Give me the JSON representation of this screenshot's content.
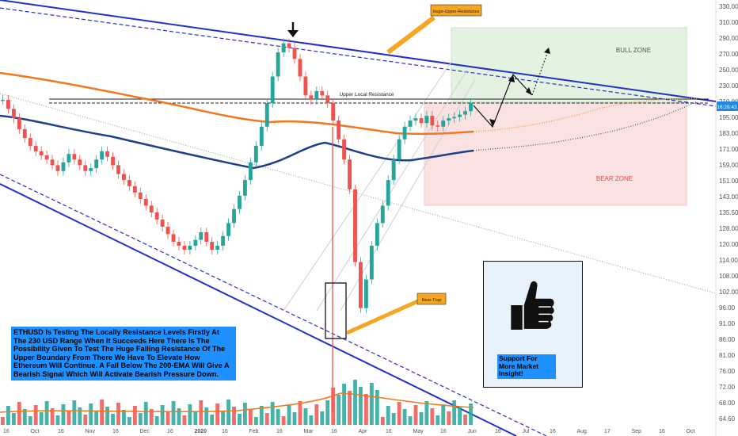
{
  "chart_data": {
    "type": "line",
    "title": "",
    "symbol": "ETHUSD",
    "price_tag": "16:28:43",
    "y_ticks": [
      "330.00",
      "310.00",
      "290.00",
      "270.00",
      "250.00",
      "230.00",
      "210.00",
      "195.00",
      "183.00",
      "171.00",
      "159.00",
      "151.00",
      "143.00",
      "135.50",
      "128.00",
      "120.00",
      "114.00",
      "108.00",
      "102.00",
      "96.00",
      "91.00",
      "86.00",
      "81.00",
      "76.00",
      "72.00",
      "68.00",
      "64.60"
    ],
    "x_ticks": [
      "16",
      "Oct",
      "16",
      "Nov",
      "16",
      "Dec",
      "16",
      "2020",
      "16",
      "Feb",
      "16",
      "Mar",
      "16",
      "Apr",
      "16",
      "May",
      "16",
      "Jun",
      "16",
      "Jul",
      "16",
      "Aug",
      "17",
      "Sep",
      "16",
      "Oct"
    ],
    "annotations": {
      "huge_resistance": "Huge-Upper-Resistance",
      "local_resistance": "Upper Local Resistance",
      "bear_trap": "Bear-Trap",
      "bull_zone": "BULL ZONE",
      "bear_zone": "BEAR ZONE"
    },
    "note": "ETHUSD Is Testing The Locally Resistance Levels Firstly At The 230 USD Range When It Succeeds Here There Is The Possibility Given To Test The  Huge Falling Resistance Of The Upper Boundary From There We Have To Elevate How Ethereum Will Continue. A Fall Below The 200-EMA Will Give A Bearish Signal Which Will Activate Bearish Pressure Down.",
    "support_text": "Support For More Market Insight!",
    "price_series": [
      228,
      220,
      212,
      203,
      196,
      190,
      186,
      183,
      180,
      176,
      172,
      178,
      184,
      180,
      176,
      172,
      174,
      180,
      186,
      182,
      176,
      170,
      166,
      162,
      158,
      154,
      150,
      146,
      142,
      138,
      134,
      130,
      128,
      126,
      128,
      131,
      135,
      130,
      126,
      128,
      133,
      140,
      148,
      156,
      166,
      178,
      190,
      205,
      225,
      250,
      275,
      285,
      280,
      268,
      250,
      232,
      228,
      236,
      232,
      225,
      210,
      195,
      180,
      160,
      120,
      100,
      112,
      128,
      140,
      150,
      166,
      180,
      195,
      205,
      210,
      212,
      208,
      214,
      206,
      205,
      210,
      212,
      213,
      215,
      218,
      225
    ]
  },
  "colors": {
    "resistance_line": "#2230c8",
    "ema200": "#f07820",
    "ema_blue": "#1f3f8c",
    "bull_zone": "#e4f2e2",
    "bear_zone": "#fbe2e2",
    "candle_up": "#26a69a",
    "candle_down": "#ef5350",
    "callout": "#f5a623"
  },
  "icons": [
    "down-arrow-icon",
    "thumbs-up-icon"
  ]
}
